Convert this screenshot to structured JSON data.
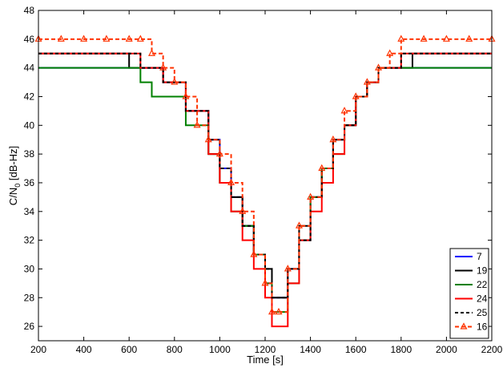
{
  "chart_data": {
    "type": "line",
    "title": "",
    "xlabel": "Time [s]",
    "ylabel_main": "C/N",
    "ylabel_sub": "0",
    "ylabel_unit": " [dB-Hz]",
    "xlim": [
      200,
      2200
    ],
    "ylim": [
      25,
      48
    ],
    "xticks": [
      200,
      400,
      600,
      800,
      1000,
      1200,
      1400,
      1600,
      1800,
      2000,
      2200
    ],
    "yticks": [
      26,
      28,
      30,
      32,
      34,
      36,
      38,
      40,
      42,
      44,
      46,
      48
    ],
    "legend_position": "bottom-right",
    "series": [
      {
        "name": "7",
        "color": "#0000ff",
        "dash": "",
        "marker": "",
        "x": [
          200,
          400,
          550,
          650,
          750,
          850,
          950,
          1000,
          1050,
          1100,
          1150,
          1200,
          1230,
          1260,
          1300,
          1350,
          1400,
          1450,
          1500,
          1550,
          1600,
          1650,
          1700,
          1800,
          1900,
          2000,
          2100,
          2200
        ],
        "y": [
          44,
          44,
          44,
          44,
          43,
          41,
          39,
          37,
          35,
          33,
          31,
          29,
          28,
          28,
          30,
          32,
          35,
          37,
          39,
          40,
          42,
          43,
          44,
          44,
          44,
          44,
          44,
          44
        ]
      },
      {
        "name": "19",
        "color": "#000000",
        "dash": "",
        "marker": "",
        "x": [
          200,
          300,
          450,
          600,
          650,
          750,
          850,
          950,
          1000,
          1050,
          1100,
          1150,
          1200,
          1230,
          1260,
          1300,
          1350,
          1400,
          1450,
          1500,
          1550,
          1600,
          1650,
          1700,
          1800,
          1850,
          2000,
          2100,
          2200
        ],
        "y": [
          45,
          45,
          45,
          44,
          44,
          43,
          41,
          38,
          36,
          35,
          33,
          31,
          30,
          28,
          28,
          30,
          33,
          35,
          37,
          39,
          40,
          42,
          43,
          44,
          44,
          45,
          45,
          45,
          45
        ]
      },
      {
        "name": "22",
        "color": "#008000",
        "dash": "",
        "marker": "",
        "x": [
          200,
          400,
          550,
          650,
          700,
          750,
          850,
          950,
          1000,
          1050,
          1100,
          1150,
          1200,
          1230,
          1260,
          1300,
          1350,
          1400,
          1450,
          1500,
          1550,
          1600,
          1650,
          1700,
          1800,
          1900,
          2000,
          2100,
          2200
        ],
        "y": [
          44,
          44,
          44,
          43,
          42,
          42,
          40,
          38,
          36,
          34,
          33,
          31,
          29,
          27,
          27,
          29,
          32,
          35,
          37,
          38,
          40,
          42,
          43,
          44,
          44,
          44,
          44,
          44,
          44
        ]
      },
      {
        "name": "24",
        "color": "#ff0000",
        "dash": "",
        "marker": "",
        "x": [
          200,
          400,
          550,
          650,
          750,
          850,
          950,
          1000,
          1050,
          1100,
          1150,
          1200,
          1230,
          1260,
          1300,
          1350,
          1400,
          1450,
          1500,
          1550,
          1600,
          1650,
          1700,
          1800,
          1900,
          2000,
          2100,
          2200
        ],
        "y": [
          45,
          45,
          45,
          44,
          43,
          41,
          38,
          36,
          34,
          32,
          30,
          28,
          26,
          26,
          29,
          32,
          34,
          36,
          38,
          40,
          42,
          43,
          44,
          45,
          45,
          45,
          45,
          45
        ]
      },
      {
        "name": "25",
        "color": "#000000",
        "dash": "4,3",
        "marker": "",
        "x": [
          200,
          400,
          550,
          650,
          750,
          850,
          950,
          1000,
          1050,
          1100,
          1150,
          1200,
          1230,
          1260,
          1300,
          1350,
          1400,
          1450,
          1500,
          1550,
          1600,
          1650,
          1700,
          1800,
          1900,
          2000,
          2100,
          2200
        ],
        "y": [
          45,
          45,
          45,
          44,
          43,
          41,
          39,
          37,
          35,
          33,
          31,
          30,
          28,
          28,
          30,
          32,
          35,
          37,
          39,
          40,
          42,
          43,
          44,
          45,
          45,
          45,
          45,
          45
        ]
      },
      {
        "name": "16",
        "color": "#ff3300",
        "dash": "5,3",
        "marker": "triangle",
        "x": [
          200,
          300,
          400,
          500,
          600,
          650,
          700,
          750,
          800,
          850,
          900,
          950,
          1000,
          1050,
          1100,
          1150,
          1200,
          1230,
          1260,
          1300,
          1350,
          1400,
          1450,
          1500,
          1550,
          1600,
          1650,
          1700,
          1750,
          1800,
          1900,
          2000,
          2100,
          2200
        ],
        "y": [
          46,
          46,
          46,
          46,
          46,
          46,
          45,
          44,
          43,
          42,
          40,
          39,
          38,
          36,
          34,
          31,
          29,
          27,
          27,
          30,
          33,
          35,
          37,
          39,
          41,
          42,
          43,
          44,
          45,
          46,
          46,
          46,
          46,
          46
        ]
      }
    ]
  }
}
